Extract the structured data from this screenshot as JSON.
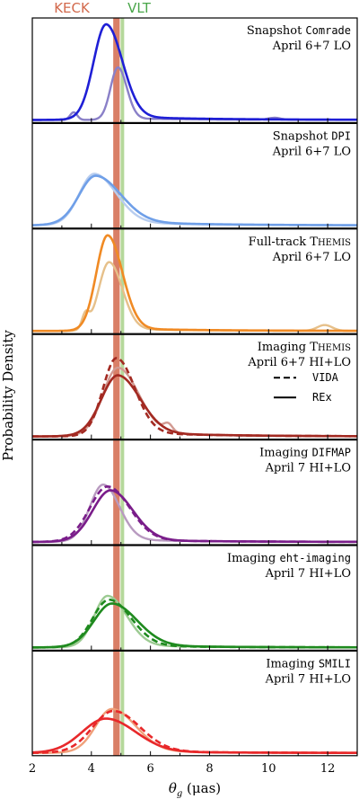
{
  "chart_data": {
    "type": "line",
    "ylabel": "Probability Density",
    "xlabel_main": "θ",
    "xlabel_sub": "g",
    "xlabel_unit": " (μas)",
    "xlim": [
      2,
      13
    ],
    "xticks": [
      "2",
      "4",
      "6",
      "8",
      "10",
      "12"
    ],
    "reference_bands": [
      {
        "name": "KECK",
        "x": 4.85,
        "width": 0.22,
        "color": "#d2694c"
      },
      {
        "name": "VLT",
        "x": 5.05,
        "width": 0.12,
        "color": "#9ccb7a"
      }
    ],
    "panels": [
      {
        "label1_pre": "Snapshot ",
        "label1_code": "Comrade",
        "label1_post": "",
        "label2": "April 6+7 LO",
        "color": "#1f1fd6",
        "light": "#8a80c8",
        "solid": {
          "mu": 4.5,
          "sl": 0.42,
          "sr": 0.55,
          "tail": 0.04,
          "amp": 1.0
        },
        "faint": {
          "mu": 4.9,
          "sl": 0.25,
          "sr": 0.3,
          "tail": 0.03,
          "amp": 0.55,
          "extra": [
            {
              "mu": 3.4,
              "s": 0.12,
              "amp": 0.08
            },
            {
              "mu": 10.2,
              "s": 0.2,
              "amp": 0.02
            }
          ]
        }
      },
      {
        "label1_pre": "Snapshot ",
        "label1_code": "DPI",
        "label1_post": "",
        "label2": "April 6+7 LO",
        "color": "#6f9fe8",
        "light": "#b8cdef",
        "solid": {
          "mu": 4.15,
          "sl": 0.55,
          "sr": 0.85,
          "tail": 0.1,
          "amp": 0.52
        },
        "faint": {
          "mu": 4.1,
          "sl": 0.5,
          "sr": 0.75,
          "tail": 0.08,
          "amp": 0.54
        }
      },
      {
        "label1_pre": "Full-track ",
        "label1_code": "",
        "label1_post": "THEMIS",
        "label2": "April 6+7 LO",
        "color": "#f08a24",
        "light": "#e6c08a",
        "solid": {
          "mu": 4.55,
          "sl": 0.38,
          "sr": 0.5,
          "tail": 0.03,
          "amp": 1.0
        },
        "faint": {
          "mu": 4.6,
          "sl": 0.35,
          "sr": 0.45,
          "tail": 0.03,
          "amp": 0.72,
          "extra": [
            {
              "mu": 3.8,
              "s": 0.12,
              "amp": 0.15
            },
            {
              "mu": 11.9,
              "s": 0.25,
              "amp": 0.06
            }
          ]
        }
      },
      {
        "label1_pre": "Imaging ",
        "label1_code": "",
        "label1_post": "THEMIS",
        "label2": "April 6+7 HI+LO",
        "legend": [
          {
            "style": "dashed",
            "label": "VIDA"
          },
          {
            "style": "solid",
            "label": "REx"
          }
        ],
        "color": "#a32a22",
        "light": "#d29a92",
        "dashed": {
          "mu": 4.85,
          "sl": 0.45,
          "sr": 0.62,
          "tail": 0.06,
          "amp": 0.82
        },
        "solid": {
          "mu": 4.9,
          "sl": 0.55,
          "sr": 0.75,
          "tail": 0.08,
          "amp": 0.64
        },
        "faint": {
          "mu": 4.9,
          "sl": 0.5,
          "sr": 0.7,
          "tail": 0.07,
          "amp": 0.72,
          "extra": [
            {
              "mu": 6.6,
              "s": 0.15,
              "amp": 0.08
            }
          ]
        }
      },
      {
        "label1_pre": "Imaging ",
        "label1_code": "DIFMAP",
        "label1_post": "",
        "label2": "April 7 HI+LO",
        "color": "#7a1d8a",
        "light": "#b89ac0",
        "dashed": {
          "mu": 4.55,
          "sl": 0.6,
          "sr": 0.75,
          "tail": 0.05,
          "amp": 0.58
        },
        "solid": {
          "mu": 4.65,
          "sl": 0.6,
          "sr": 0.75,
          "tail": 0.05,
          "amp": 0.54
        },
        "faint": {
          "mu": 4.4,
          "sl": 0.45,
          "sr": 0.55,
          "tail": 0.05,
          "amp": 0.6
        }
      },
      {
        "label1_pre": "Imaging ",
        "label1_code": "eht-imaging",
        "label1_post": "",
        "label2": "April 7 HI+LO",
        "color": "#1e8a1e",
        "light": "#9ccb92",
        "dashed": {
          "mu": 4.6,
          "sl": 0.55,
          "sr": 0.75,
          "tail": 0.05,
          "amp": 0.5
        },
        "solid": {
          "mu": 4.7,
          "sl": 0.6,
          "sr": 0.85,
          "tail": 0.06,
          "amp": 0.46
        },
        "faint": {
          "mu": 4.55,
          "sl": 0.45,
          "sr": 0.65,
          "tail": 0.05,
          "amp": 0.54
        }
      },
      {
        "label1_pre": "Imaging ",
        "label1_code": "SMILI",
        "label1_post": "",
        "label2": "April 7 HI+LO",
        "color": "#e8282a",
        "light": "#f0a07a",
        "dashed": {
          "mu": 4.75,
          "sl": 0.7,
          "sr": 0.9,
          "tail": 0.06,
          "amp": 0.44
        },
        "solid": {
          "mu": 4.5,
          "sl": 0.8,
          "sr": 1.0,
          "tail": 0.06,
          "amp": 0.36
        },
        "faint": {
          "mu": 4.7,
          "sl": 0.55,
          "sr": 0.8,
          "tail": 0.06,
          "amp": 0.46
        }
      }
    ]
  }
}
